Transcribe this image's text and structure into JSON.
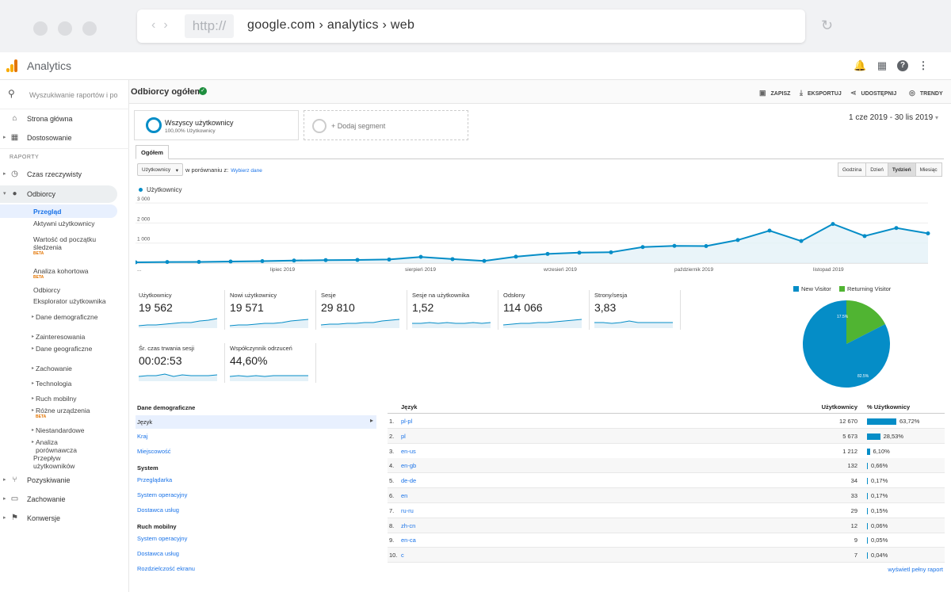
{
  "browser": {
    "protocol": "http://",
    "url": "google.com › analytics › web"
  },
  "app": {
    "title": "Analytics"
  },
  "sidebar": {
    "search_placeholder": "Wyszukiwanie raportów i po",
    "home": "Strona główna",
    "customization": "Dostosowanie",
    "reports_header": "RAPORTY",
    "realtime": "Czas rzeczywisty",
    "audience": "Odbiorcy",
    "audience_items": {
      "overview": "Przegląd",
      "active_users": "Aktywni użytkownicy",
      "lifetime_value": "Wartość od początku śledzenia",
      "cohort": "Analiza kohortowa",
      "audiences": "Odbiorcy",
      "user_explorer": "Eksplorator użytkownika",
      "demographics": "Dane demograficzne",
      "interests": "Zainteresowania",
      "geo": "Dane geograficzne",
      "behavior": "Zachowanie",
      "technology": "Technologia",
      "mobile": "Ruch mobilny",
      "cross_device": "Różne urządzenia",
      "custom": "Niestandardowe",
      "benchmarking": "Analiza porównawcza",
      "users_flow": "Przepływ użytkowników",
      "beta": "BETA"
    },
    "acquisition": "Pozyskiwanie",
    "behavior": "Zachowanie",
    "conversions": "Konwersje"
  },
  "header": {
    "title": "Odbiorcy ogółem",
    "save": "ZAPISZ",
    "export": "EKSPORTUJ",
    "share": "UDOSTĘPNIJ",
    "trends": "TRENDY"
  },
  "segments": {
    "active_title": "Wszyscy użytkownicy",
    "active_sub": "100,00% Użytkownicy",
    "add_label": "+ Dodaj segment"
  },
  "date_range": "1 cze 2019 - 30 lis 2019",
  "tabs": {
    "overview": "Ogółem"
  },
  "controls": {
    "metric": "Użytkownicy",
    "compare": "w porównaniu z:",
    "compare_link": "Wybierz dane",
    "granularity": [
      "Godzina",
      "Dzień",
      "Tydzień",
      "Miesiąc"
    ],
    "granularity_selected": "Tydzień"
  },
  "chart_data": {
    "type": "line",
    "series": [
      {
        "name": "Użytkownicy",
        "values": [
          40,
          55,
          60,
          80,
          100,
          130,
          150,
          160,
          180,
          310,
          200,
          110,
          320,
          460,
          520,
          540,
          800,
          860,
          850,
          1150,
          1620,
          1100,
          1950,
          1350,
          1750,
          1480
        ]
      }
    ],
    "y_ticks": [
      "3 000",
      "2 000",
      "1 000"
    ],
    "x_labels": [
      "...",
      "lipiec 2019",
      "sierpień 2019",
      "wrzesień 2019",
      "październik 2019",
      "listopad 2019"
    ],
    "ylim": [
      0,
      3200
    ],
    "color": "#058dc7"
  },
  "metrics": [
    {
      "label": "Użytkownicy",
      "value": "19 562"
    },
    {
      "label": "Nowi użytkownicy",
      "value": "19 571"
    },
    {
      "label": "Sesje",
      "value": "29 810"
    },
    {
      "label": "Sesje na użytkownika",
      "value": "1,52"
    },
    {
      "label": "Odsłony",
      "value": "114 066"
    },
    {
      "label": "Strony/sesja",
      "value": "3,83"
    },
    {
      "label": "Śr. czas trwania sesji",
      "value": "00:02:53"
    },
    {
      "label": "Współczynnik odrzuceń",
      "value": "44,60%"
    }
  ],
  "pie": {
    "new_label": "New Visitor",
    "returning_label": "Returning Visitor",
    "new_pct": 82.5,
    "returning_pct": 17.5,
    "new_text": "82.5%",
    "returning_text": "17.5%",
    "new_color": "#058dc7",
    "returning_color": "#50b432"
  },
  "left_list": {
    "demographics_header": "Dane demograficzne",
    "language": "Język",
    "country": "Kraj",
    "city": "Miejscowość",
    "system_header": "System",
    "browser": "Przeglądarka",
    "os": "System operacyjny",
    "isp": "Dostawca usług",
    "mobile_header": "Ruch mobilny",
    "mobile_os": "System operacyjny",
    "mobile_isp": "Dostawca usług",
    "resolution": "Rozdzielczość ekranu"
  },
  "table": {
    "col_lang": "Język",
    "col_users": "Użytkownicy",
    "col_pct": "% Użytkownicy",
    "rows": [
      {
        "idx": "1.",
        "lang": "pl-pl",
        "users": "12 670",
        "pct": "63,72%",
        "share": 63.72
      },
      {
        "idx": "2.",
        "lang": "pl",
        "users": "5 673",
        "pct": "28,53%",
        "share": 28.53
      },
      {
        "idx": "3.",
        "lang": "en-us",
        "users": "1 212",
        "pct": "6,10%",
        "share": 6.1
      },
      {
        "idx": "4.",
        "lang": "en-gb",
        "users": "132",
        "pct": "0,66%",
        "share": 0.66
      },
      {
        "idx": "5.",
        "lang": "de-de",
        "users": "34",
        "pct": "0,17%",
        "share": 0.17
      },
      {
        "idx": "6.",
        "lang": "en",
        "users": "33",
        "pct": "0,17%",
        "share": 0.17
      },
      {
        "idx": "7.",
        "lang": "ru-ru",
        "users": "29",
        "pct": "0,15%",
        "share": 0.15
      },
      {
        "idx": "8.",
        "lang": "zh-cn",
        "users": "12",
        "pct": "0,06%",
        "share": 0.06
      },
      {
        "idx": "9.",
        "lang": "en-ca",
        "users": "9",
        "pct": "0,05%",
        "share": 0.05
      },
      {
        "idx": "10.",
        "lang": "c",
        "users": "7",
        "pct": "0,04%",
        "share": 0.04
      }
    ],
    "full_report": "wyświetl pełny raport"
  }
}
